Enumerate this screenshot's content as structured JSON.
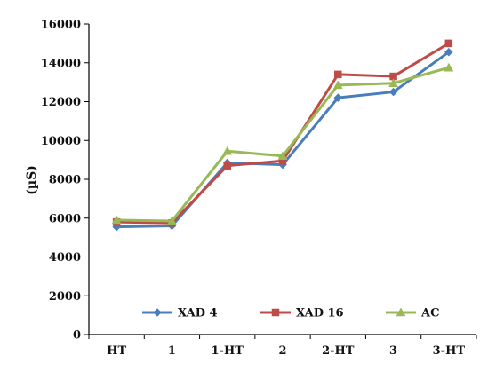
{
  "chart_data": {
    "type": "line",
    "title": "",
    "xlabel": "",
    "ylabel": "(µS)",
    "categories": [
      "HT",
      "1",
      "1-HT",
      "2",
      "2-HT",
      "3",
      "3-HT"
    ],
    "ylim": [
      0,
      16000
    ],
    "yticks": [
      0,
      2000,
      4000,
      6000,
      8000,
      10000,
      12000,
      14000,
      16000
    ],
    "grid": false,
    "legend_position": "bottom-inside",
    "series": [
      {
        "name": "XAD 4",
        "color": "#4a7ebb",
        "marker": "diamond",
        "values": [
          5550,
          5600,
          8850,
          8750,
          12200,
          12500,
          14550
        ]
      },
      {
        "name": "XAD 16",
        "color": "#be4b48",
        "marker": "square",
        "values": [
          5800,
          5750,
          8700,
          8950,
          13400,
          13300,
          15000
        ]
      },
      {
        "name": "AC",
        "color": "#98b954",
        "marker": "triangle",
        "values": [
          5900,
          5850,
          9450,
          9200,
          12850,
          12950,
          13750
        ]
      }
    ]
  }
}
